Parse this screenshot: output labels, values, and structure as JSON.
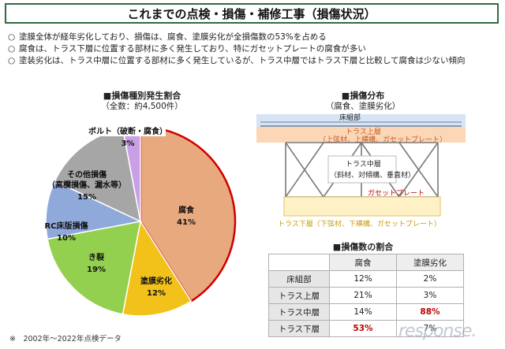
{
  "title": "これまでの点検・損傷・補修工事（損傷状況）",
  "bullets": [
    "塗膜全体が経年劣化しており、損傷は、腐食、塗膜劣化が全損傷数の53%を占める",
    "腐食は、トラス下層に位置する部材に多く発生しており、特にガセットプレートの腐食が多い",
    "塗装劣化は、トラス中層に位置する部材に多く発生しているが、トラス中層ではトラス下層と比較して腐食は少ない傾向"
  ],
  "bullet_mark": "○",
  "chart_data": {
    "type": "pie",
    "title": "■損傷種別発生割合",
    "subtitle": "（全数：約4,500件）",
    "slices": [
      {
        "label": "腐食",
        "value": 41,
        "display": "41%",
        "color": "#e8a97e"
      },
      {
        "label": "塗膜劣化",
        "value": 12,
        "display": "12%",
        "color": "#f2c21b"
      },
      {
        "label": "き裂",
        "value": 19,
        "display": "19%",
        "color": "#93d04f"
      },
      {
        "label": "RC床版損傷",
        "value": 10,
        "display": "10%",
        "color": "#8fa9db"
      },
      {
        "label": "その他損傷\n（高欄損傷、漏水等）",
        "value": 15,
        "display": "15%",
        "color": "#a6a6a6"
      },
      {
        "label": "ボルト（破断・腐食）",
        "value": 3,
        "display": "3%",
        "color": "#c9a0e6"
      }
    ],
    "highlight": "腐食"
  },
  "diagram": {
    "title": "■損傷分布",
    "subtitle": "（腐食、塗膜劣化）",
    "labels": {
      "deck": "床組部",
      "upper": "トラス上層",
      "upper_sub": "（上弦材、上横構、ガセットプレート）",
      "middle": "トラス中層",
      "middle_sub": "（斜材、対傾構、垂直材）",
      "gusset": "ガセットプレート",
      "lower": "トラス下層（下弦材、下横構、ガセットプレート）"
    }
  },
  "table": {
    "title": "■損傷数の割合",
    "headers": [
      "",
      "腐食",
      "塗膜劣化"
    ],
    "rows": [
      {
        "name": "床組部",
        "corrosion": "12%",
        "coating": "2%",
        "hl": []
      },
      {
        "name": "トラス上層",
        "corrosion": "21%",
        "coating": "3%",
        "hl": []
      },
      {
        "name": "トラス中層",
        "corrosion": "14%",
        "coating": "88%",
        "hl": [
          "coating"
        ]
      },
      {
        "name": "トラス下層",
        "corrosion": "53%",
        "coating": "7%",
        "hl": [
          "corrosion"
        ]
      }
    ]
  },
  "footnote": "※　2002年～2022年点検データ",
  "watermark": "response."
}
